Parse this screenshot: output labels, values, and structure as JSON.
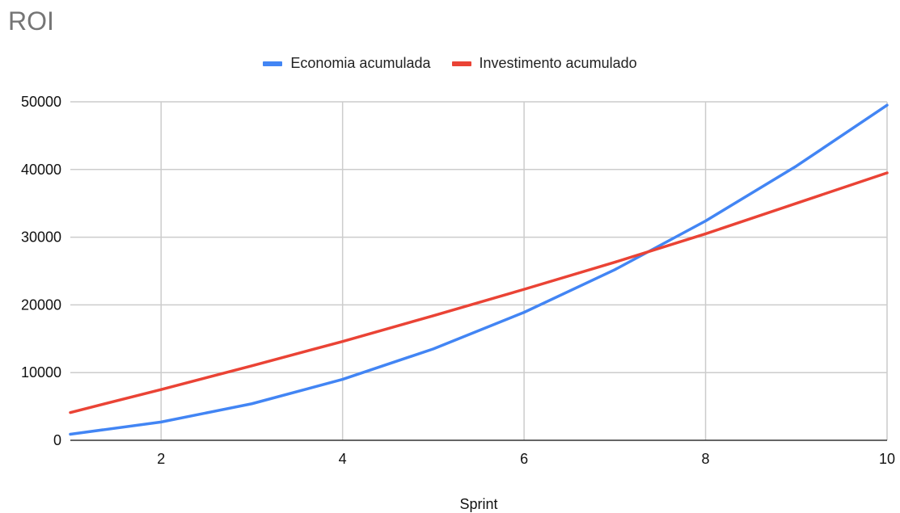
{
  "chart_data": {
    "type": "line",
    "title": "ROI",
    "xlabel": "Sprint",
    "ylabel": "",
    "x": [
      1,
      2,
      3,
      4,
      5,
      6,
      7,
      8,
      9,
      10
    ],
    "xlim": [
      1,
      10
    ],
    "ylim": [
      0,
      50000
    ],
    "xticks": [
      2,
      4,
      6,
      8,
      10
    ],
    "yticks": [
      0,
      10000,
      20000,
      30000,
      40000,
      50000
    ],
    "grid": true,
    "legend_position": "top",
    "series": [
      {
        "name": "Economia acumulada",
        "color": "#4285F4",
        "values": [
          900,
          2700,
          5400,
          9000,
          13500,
          18900,
          25200,
          32400,
          40500,
          49500
        ]
      },
      {
        "name": "Investimento acumulado",
        "color": "#EA4335",
        "values": [
          4100,
          7500,
          11000,
          14600,
          18400,
          22300,
          26300,
          30500,
          35000,
          39500
        ]
      }
    ]
  }
}
